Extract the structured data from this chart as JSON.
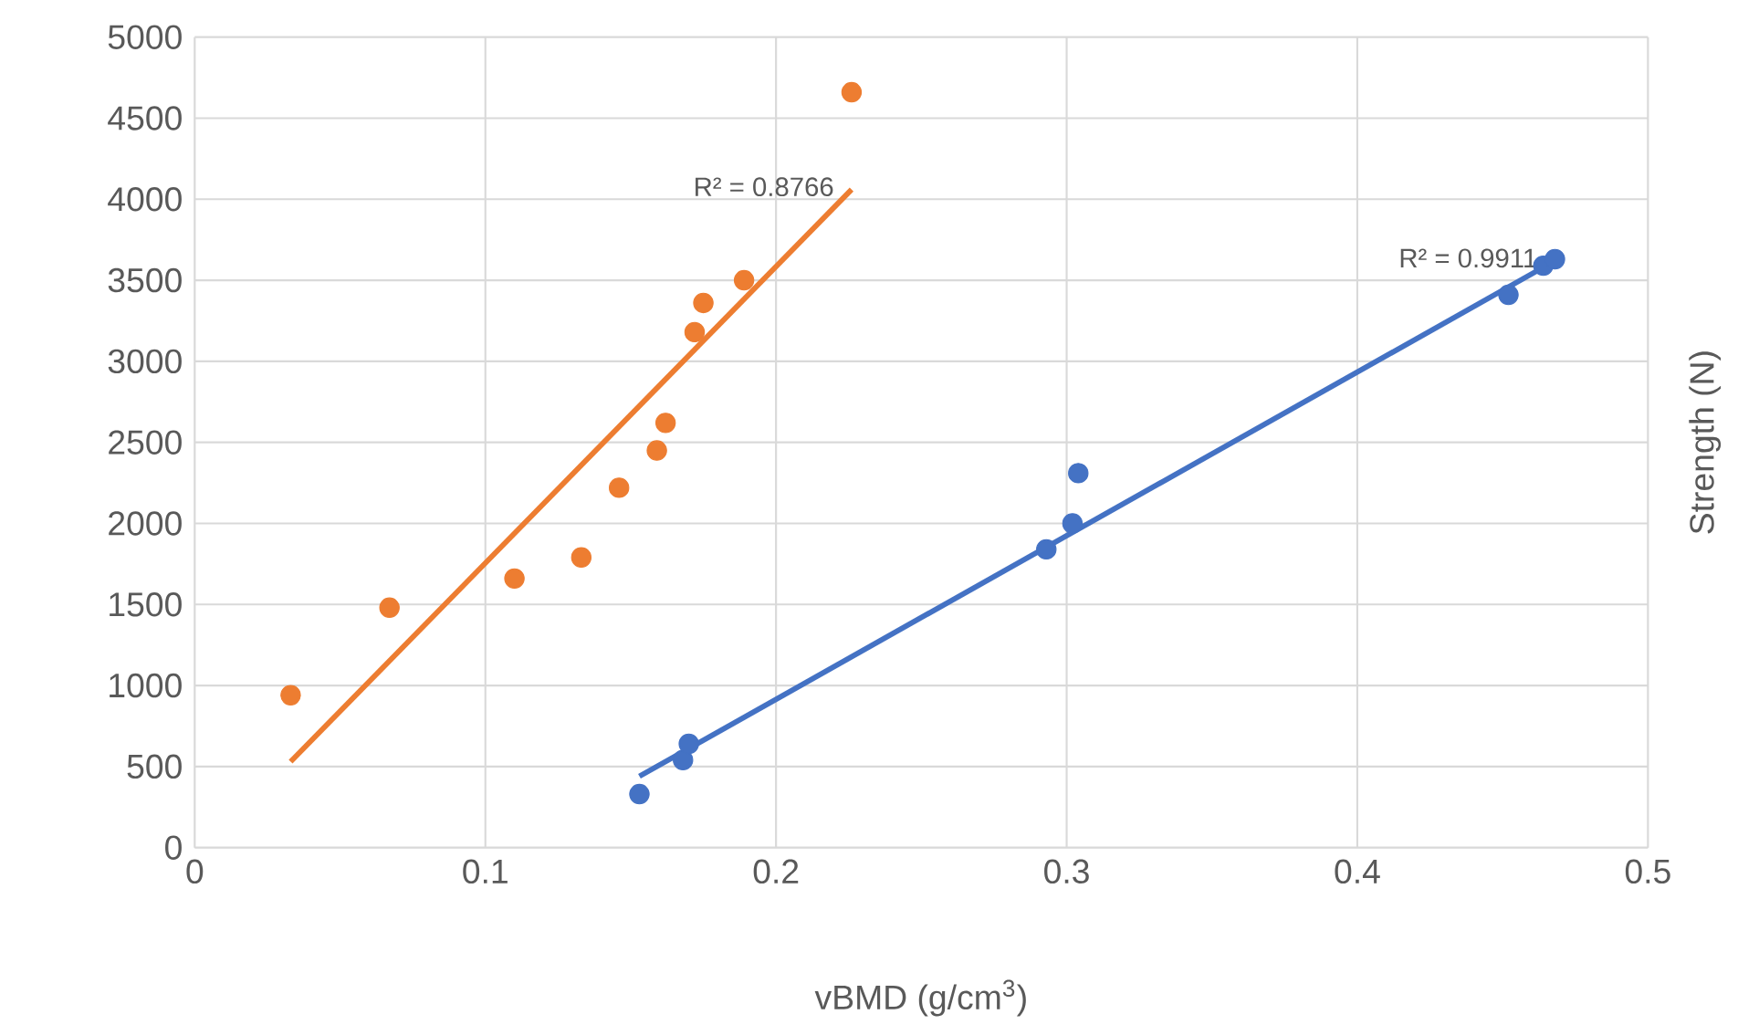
{
  "chart_data": {
    "type": "scatter",
    "xlabel": "vBMD (g/cm$^{3}$)",
    "ylabel": "Strength (N)",
    "xlim": [
      0,
      0.5
    ],
    "xticks": [
      0,
      0.1,
      0.2,
      0.3,
      0.4,
      0.5
    ],
    "ylim": [
      0,
      5000
    ],
    "yticks": [
      0,
      500,
      1000,
      1500,
      2000,
      2500,
      3000,
      3500,
      4000,
      4500,
      5000
    ],
    "grid": true,
    "marker": "circle",
    "series": [
      {
        "color": "#ed7d31",
        "x": [
          0.033,
          0.067,
          0.11,
          0.133,
          0.146,
          0.159,
          0.162,
          0.172,
          0.175,
          0.189,
          0.226
        ],
        "values": [
          940,
          1480,
          1660,
          1790,
          2220,
          2450,
          2620,
          3180,
          3360,
          3500,
          4660
        ]
      },
      {
        "type": "line",
        "marker": "none",
        "color": "#ed7d31",
        "x": [
          0.033,
          0.226
        ],
        "values": [
          530,
          4060
        ]
      },
      {
        "color": "#4472c4",
        "x": [
          0.153,
          0.168,
          0.17,
          0.293,
          0.302,
          0.304,
          0.452,
          0.464,
          0.468
        ],
        "values": [
          330,
          540,
          640,
          1840,
          2000,
          2310,
          3410,
          3590,
          3630
        ]
      },
      {
        "type": "line",
        "marker": "none",
        "color": "#4472c4",
        "x": [
          0.153,
          0.468
        ],
        "values": [
          440,
          3620
        ]
      }
    ],
    "annotations": [
      {
        "text": "R² = 0.8766",
        "x": 0.226,
        "y": 4060
      },
      {
        "text": "R² = 0.9911",
        "x": 0.468,
        "y": 3620
      }
    ]
  }
}
